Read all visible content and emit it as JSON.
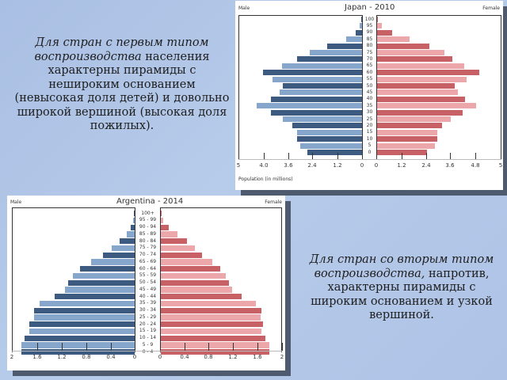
{
  "slide": {
    "caption1": {
      "italic": "Для стран с первым типом воспроизводства",
      "normal": " населения характерны пирамиды с неширoким основанием (невысокая доля детей) и довольно широкой вершиной (высокая доля пожилых)."
    },
    "caption2": {
      "italic": "Для стран со вторым типом воспроизводства,",
      "normal": " напротив, характерны пирамиды с широким основанием и узкой вершиной."
    }
  },
  "colors": {
    "male_dark": "#3d5a80",
    "male_light": "#86a6cc",
    "female_dark": "#c86166",
    "female_light": "#eca7ab",
    "background": "#b0c5e7",
    "shadow": "#4e5a6e"
  },
  "chart_data": [
    {
      "type": "bar",
      "orientation": "horizontal-population-pyramid",
      "title": "Japan - 2010",
      "left_label": "Male",
      "right_label": "Female",
      "xlabel": "Population (in millions)",
      "categories": [
        "100",
        "95",
        "90",
        "85",
        "80",
        "75",
        "70",
        "65",
        "60",
        "55",
        "50",
        "45",
        "40",
        "35",
        "30",
        "25",
        "20",
        "15",
        "10",
        "5",
        "0"
      ],
      "series": [
        {
          "name": "Male",
          "values": [
            0.04,
            0.11,
            0.3,
            0.75,
            1.65,
            2.47,
            3.07,
            3.78,
            4.68,
            4.23,
            3.75,
            3.9,
            4.31,
            4.98,
            4.31,
            3.75,
            3.3,
            3.07,
            3.07,
            2.92,
            2.58
          ]
        },
        {
          "name": "Female",
          "values": [
            0.04,
            0.22,
            0.71,
            1.54,
            2.47,
            3.18,
            3.56,
            4.12,
            4.83,
            4.23,
            3.67,
            3.82,
            4.16,
            4.68,
            4.04,
            3.48,
            3.07,
            2.85,
            2.85,
            2.73,
            2.36
          ]
        }
      ],
      "left_ticks": [
        "5",
        "4.0",
        "3.6",
        "2.4",
        "1.2",
        "0"
      ],
      "right_ticks": [
        "0",
        "1.2",
        "2.4",
        "3.6",
        "4.8",
        "5"
      ],
      "xlim": [
        0,
        6
      ],
      "grid": false,
      "legend": "none"
    },
    {
      "type": "bar",
      "orientation": "horizontal-population-pyramid",
      "title": "Argentina - 2014",
      "left_label": "Male",
      "right_label": "Female",
      "categories": [
        "100+",
        "95 - 99",
        "90 - 94",
        "85 - 89",
        "80 - 84",
        "75 - 79",
        "70 - 74",
        "65 - 69",
        "60 - 64",
        "55 - 59",
        "50 - 54",
        "45 - 49",
        "40 - 44",
        "35 - 39",
        "30 - 34",
        "25 - 29",
        "20 - 24",
        "15 - 19",
        "10 - 14",
        "5 - 9",
        "0 - 4"
      ],
      "series": [
        {
          "name": "Male",
          "values": [
            0.01,
            0.02,
            0.06,
            0.13,
            0.25,
            0.37,
            0.52,
            0.71,
            0.89,
            1.01,
            1.08,
            1.14,
            1.3,
            1.55,
            1.64,
            1.64,
            1.72,
            1.72,
            1.79,
            1.85,
            1.85
          ]
        },
        {
          "name": "Female",
          "values": [
            0.01,
            0.04,
            0.13,
            0.27,
            0.43,
            0.55,
            0.67,
            0.84,
            0.97,
            1.06,
            1.11,
            1.16,
            1.32,
            1.55,
            1.64,
            1.63,
            1.66,
            1.64,
            1.7,
            1.77,
            1.77
          ]
        }
      ],
      "left_ticks": [
        "2",
        "1.6",
        "1.2",
        "0.8",
        "0.4",
        "0"
      ],
      "right_ticks": [
        "0",
        "0.4",
        "0.8",
        "1.2",
        "1.6",
        "2"
      ],
      "xlim": [
        0,
        2
      ],
      "grid": false,
      "legend": "none"
    }
  ]
}
